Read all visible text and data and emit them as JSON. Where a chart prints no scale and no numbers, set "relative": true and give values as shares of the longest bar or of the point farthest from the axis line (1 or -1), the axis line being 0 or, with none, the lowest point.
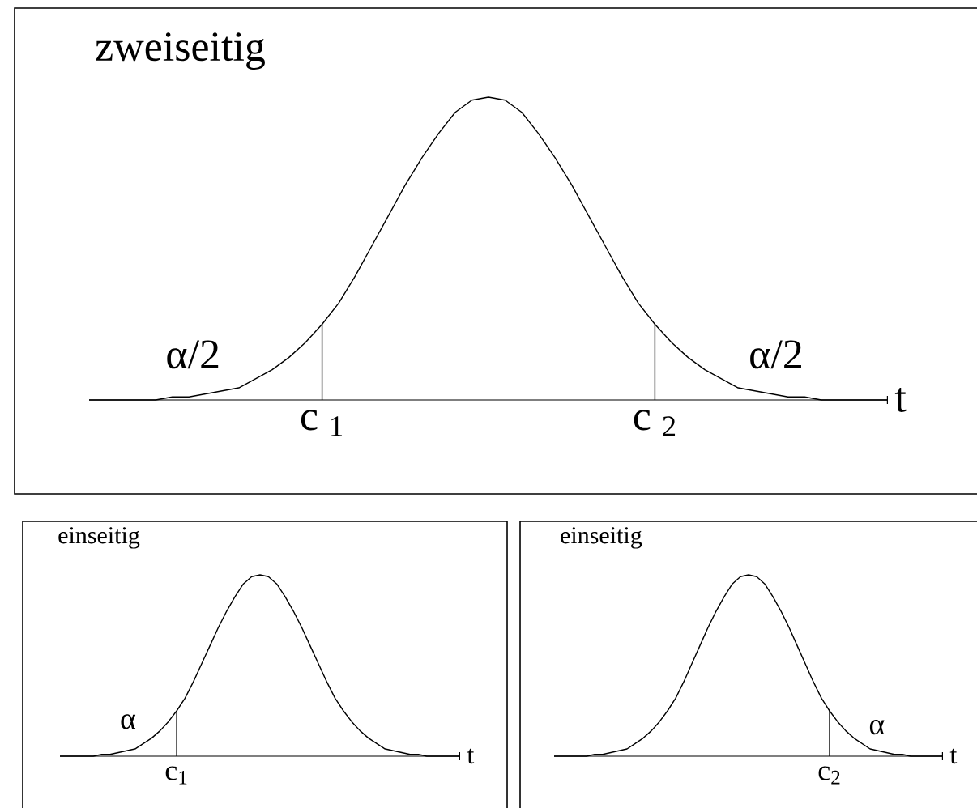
{
  "chart_data": [
    {
      "type": "line",
      "title": "zweiseitig",
      "xlabel": "t",
      "relative": true,
      "color": "#000000",
      "categories": [
        null,
        null,
        null,
        null,
        null,
        null,
        null,
        null,
        null,
        null,
        null,
        null,
        null,
        null,
        null,
        null,
        null,
        null,
        null,
        null,
        null,
        null,
        null,
        null,
        null,
        null,
        null,
        null,
        null,
        null,
        null,
        null,
        null,
        null,
        null,
        null,
        null,
        null,
        null,
        null,
        null,
        null,
        null,
        null,
        null,
        null,
        null,
        null,
        null
      ],
      "values": [
        0,
        0,
        0,
        0,
        0,
        0.01,
        0.01,
        0.02,
        0.03,
        0.04,
        0.07,
        0.1,
        0.14,
        0.19,
        0.25,
        0.32,
        0.41,
        0.51,
        0.61,
        0.71,
        0.8,
        0.88,
        0.95,
        0.99,
        1,
        0.99,
        0.95,
        0.88,
        0.8,
        0.71,
        0.61,
        0.51,
        0.41,
        0.32,
        0.25,
        0.19,
        0.14,
        0.1,
        0.07,
        0.04,
        0.03,
        0.02,
        0.01,
        0.01,
        0,
        0,
        0,
        0,
        0
      ],
      "annotations": [
        "α/2",
        "α/2",
        "c $_{1}$",
        "c $_{2}$"
      ]
    },
    {
      "type": "line",
      "title": "einseitig",
      "xlabel": "t",
      "relative": true,
      "color": "#000000",
      "categories": [
        null,
        null,
        null,
        null,
        null,
        null,
        null,
        null,
        null,
        null,
        null,
        null,
        null,
        null,
        null,
        null,
        null,
        null,
        null,
        null,
        null,
        null,
        null,
        null,
        null,
        null,
        null,
        null,
        null,
        null,
        null,
        null,
        null,
        null,
        null,
        null,
        null,
        null,
        null,
        null,
        null,
        null,
        null,
        null,
        null,
        null,
        null,
        null,
        null
      ],
      "values": [
        0,
        0,
        0,
        0,
        0,
        0.01,
        0.01,
        0.02,
        0.03,
        0.04,
        0.07,
        0.1,
        0.14,
        0.19,
        0.25,
        0.32,
        0.41,
        0.51,
        0.61,
        0.71,
        0.8,
        0.88,
        0.95,
        0.99,
        1,
        0.99,
        0.95,
        0.88,
        0.8,
        0.71,
        0.61,
        0.51,
        0.41,
        0.32,
        0.25,
        0.19,
        0.14,
        0.1,
        0.07,
        0.04,
        0.03,
        0.02,
        0.01,
        0.01,
        0,
        0,
        0,
        0,
        0
      ],
      "annotations": [
        "α",
        "c$_{1}$"
      ]
    },
    {
      "type": "line",
      "title": "einseitig",
      "xlabel": "t",
      "relative": true,
      "color": "#000000",
      "categories": [
        null,
        null,
        null,
        null,
        null,
        null,
        null,
        null,
        null,
        null,
        null,
        null,
        null,
        null,
        null,
        null,
        null,
        null,
        null,
        null,
        null,
        null,
        null,
        null,
        null,
        null,
        null,
        null,
        null,
        null,
        null,
        null,
        null,
        null,
        null,
        null,
        null,
        null,
        null,
        null,
        null,
        null,
        null,
        null,
        null,
        null,
        null,
        null,
        null
      ],
      "values": [
        0,
        0,
        0,
        0,
        0,
        0.01,
        0.01,
        0.02,
        0.03,
        0.04,
        0.07,
        0.1,
        0.14,
        0.19,
        0.25,
        0.32,
        0.41,
        0.51,
        0.61,
        0.71,
        0.8,
        0.88,
        0.95,
        0.99,
        1,
        0.99,
        0.95,
        0.88,
        0.8,
        0.71,
        0.61,
        0.51,
        0.41,
        0.32,
        0.25,
        0.19,
        0.14,
        0.1,
        0.07,
        0.04,
        0.03,
        0.02,
        0.01,
        0.01,
        0,
        0,
        0,
        0,
        0
      ],
      "annotations": [
        "α",
        "c$_{2}$"
      ]
    }
  ]
}
